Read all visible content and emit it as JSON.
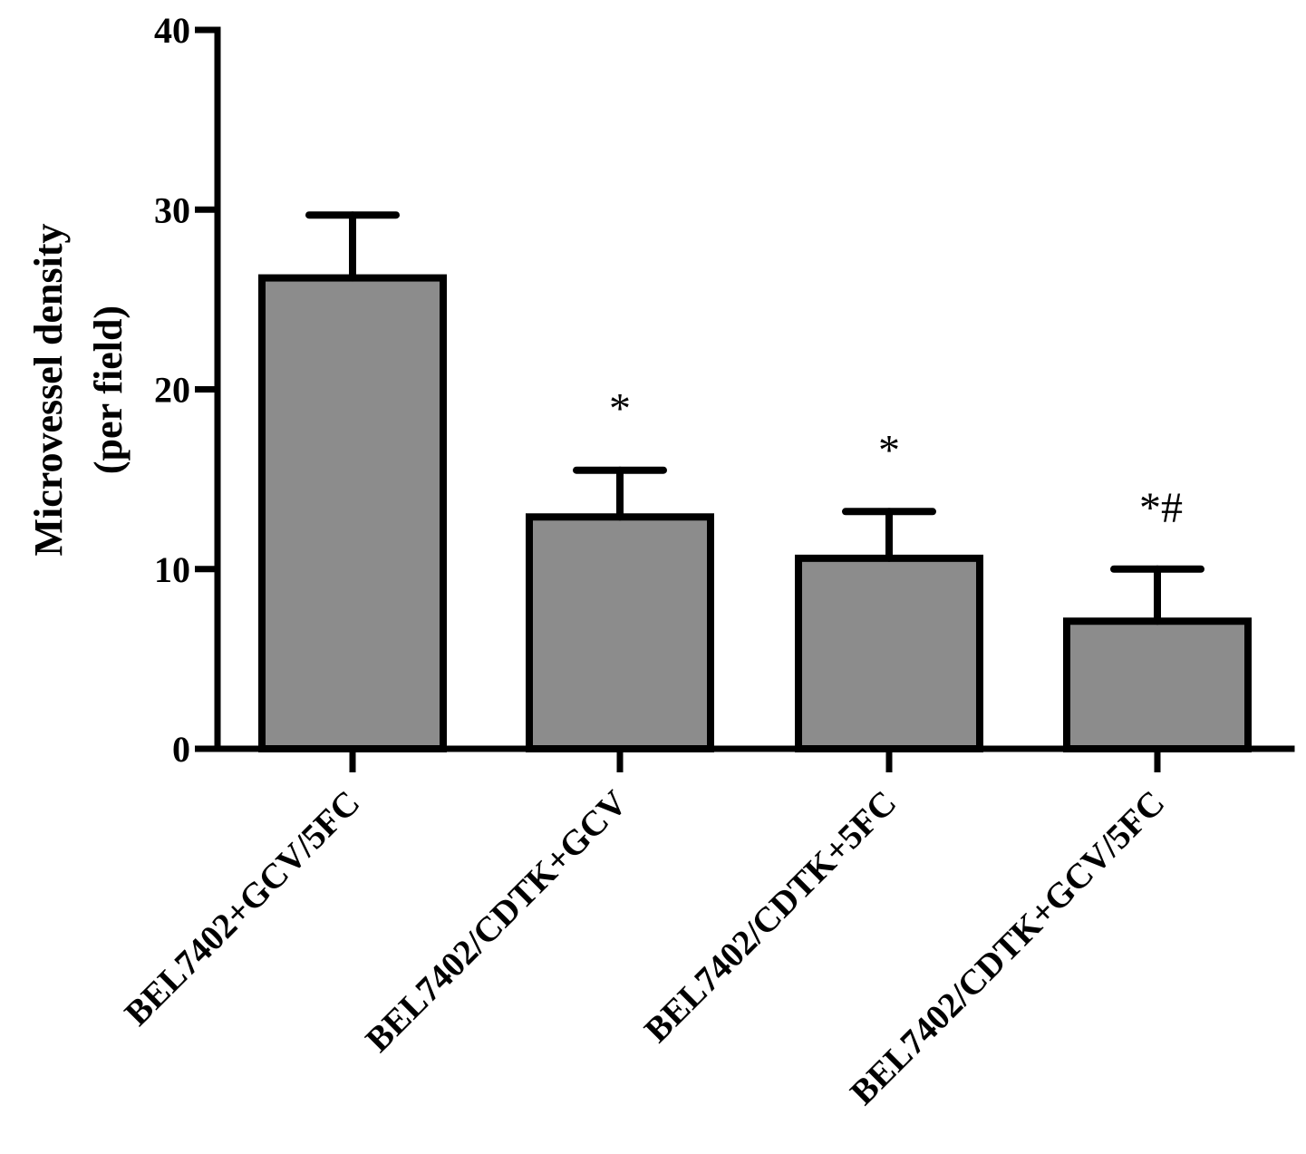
{
  "chart_data": {
    "type": "bar",
    "categories": [
      "BEL7402+GCV/5FC",
      "BEL7402/CDTK+GCV",
      "BEL7402/CDTK+5FC",
      "BEL7402/CDTK+GCV/5FC"
    ],
    "values": [
      26.2,
      12.9,
      10.6,
      7.1
    ],
    "errors": [
      3.5,
      2.6,
      2.6,
      2.9
    ],
    "annotations": [
      "",
      "*",
      "*",
      "*#"
    ],
    "title": "",
    "xlabel": "",
    "ylabel": [
      "Microvessel  density",
      "(per field)"
    ],
    "ylim": [
      0,
      40
    ],
    "yticks": [
      0,
      10,
      20,
      30,
      40
    ],
    "grid": false,
    "colors": {
      "bar": "#8c8c8c",
      "axis": "#000000"
    }
  }
}
